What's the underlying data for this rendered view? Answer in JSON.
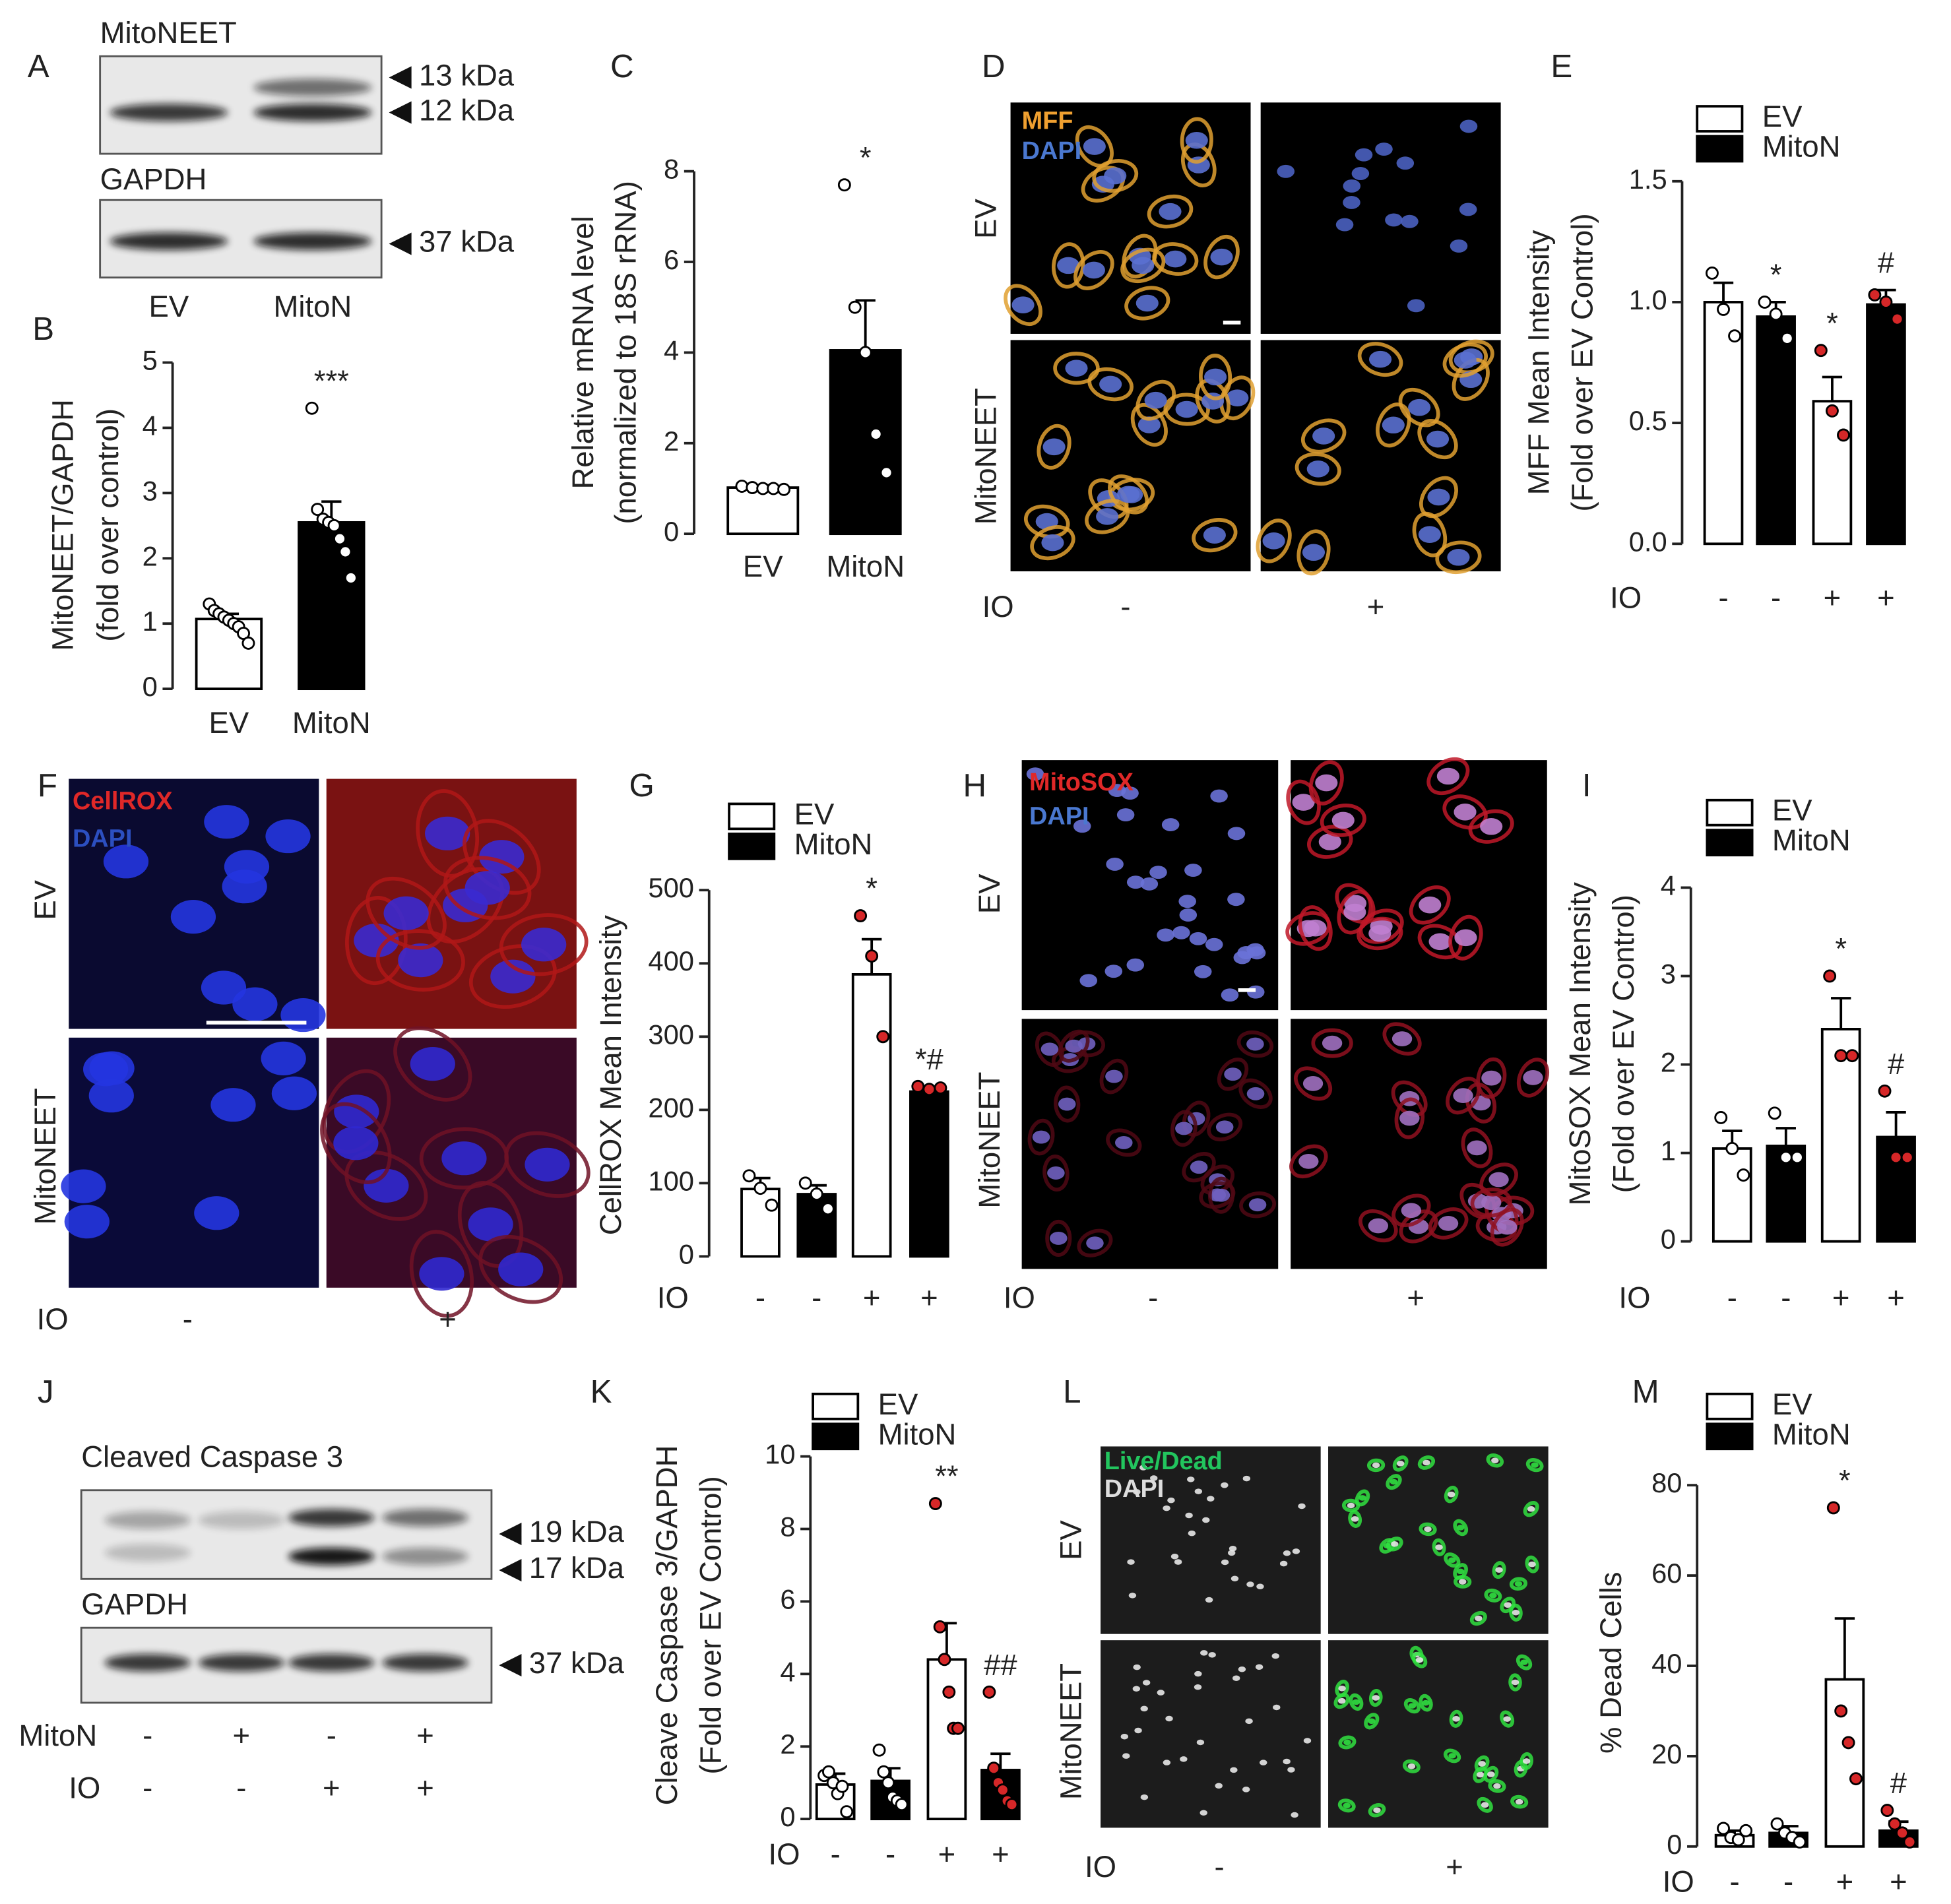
{
  "chart_data": [
    {
      "type": "bar",
      "panel": "B",
      "ylabel": [
        "MitoNEET/GAPDH",
        "(fold over control)"
      ],
      "categories": [
        "EV",
        "MitoN"
      ],
      "colors": [
        "#ffffff",
        "#000000"
      ],
      "values": [
        1.07,
        2.55
      ],
      "errors": [
        0.08,
        0.32
      ],
      "points": [
        [
          1.3,
          1.2,
          1.15,
          1.1,
          1.05,
          1.0,
          0.95,
          0.85,
          0.7
        ],
        [
          4.3,
          2.75,
          2.6,
          2.55,
          2.5,
          2.3,
          2.1,
          1.7
        ]
      ],
      "point_colors": [
        "#ffffff",
        "#ffffff"
      ],
      "annotations": [
        null,
        "***"
      ],
      "ylim": [
        0,
        5
      ],
      "yticks": [
        0,
        1,
        2,
        3,
        4,
        5
      ]
    },
    {
      "type": "bar",
      "panel": "C",
      "ylabel": [
        "Relative mRNA level",
        "(normalized to 18S rRNA)"
      ],
      "categories": [
        "EV",
        "MitoN"
      ],
      "colors": [
        "#ffffff",
        "#000000"
      ],
      "values": [
        1.02,
        4.05
      ],
      "errors": [
        0.05,
        1.1
      ],
      "points": [
        [
          1.05,
          1.02,
          1.0,
          1.0,
          0.98
        ],
        [
          7.7,
          5.0,
          4.0,
          2.2,
          1.35
        ]
      ],
      "point_colors": [
        "#ffffff",
        "#ffffff"
      ],
      "annotations": [
        null,
        "*"
      ],
      "ylim": [
        0,
        8
      ],
      "yticks": [
        0,
        2,
        4,
        6,
        8
      ]
    },
    {
      "type": "bar",
      "panel": "E",
      "ylabel": [
        "MFF Mean Intensity",
        "(Fold over EV Control)"
      ],
      "x_row_label": "IO",
      "categories": [
        "-",
        "-",
        "+",
        "+"
      ],
      "series": [
        {
          "name": "EV",
          "color": "#ffffff",
          "values": [
            1.0,
            null,
            0.59,
            null
          ],
          "errors": [
            0.08,
            null,
            0.1,
            null
          ],
          "points": [
            [
              1.12,
              0.97,
              0.86
            ],
            null,
            [
              0.8,
              0.55,
              0.45
            ],
            null
          ]
        },
        {
          "name": "MitoN",
          "color": "#000000",
          "values": [
            null,
            0.94,
            null,
            0.99
          ],
          "errors": [
            null,
            0.06,
            null,
            0.06
          ],
          "points": [
            null,
            [
              1.0,
              0.95,
              0.85
            ],
            null,
            [
              1.03,
              1.0,
              0.93
            ]
          ]
        }
      ],
      "point_colors": [
        "#ffffff",
        "#ffffff",
        "#d62728",
        "#d62728"
      ],
      "annotations": [
        null,
        "*",
        "*",
        "#"
      ],
      "ylim": [
        0,
        1.5
      ],
      "yticks": [
        {
          "value": 0,
          "label": "0.0"
        },
        0.5,
        {
          "value": 1,
          "label": "1.0"
        },
        1.5
      ]
    },
    {
      "type": "bar",
      "panel": "G",
      "ylabel": [
        "CellROX Mean Intensity"
      ],
      "x_row_label": "IO",
      "categories": [
        "-",
        "-",
        "+",
        "+"
      ],
      "series": [
        {
          "name": "EV",
          "color": "#ffffff",
          "values": [
            92,
            null,
            385,
            null
          ],
          "errors": [
            15,
            null,
            48,
            null
          ],
          "points": [
            [
              110,
              93,
              70
            ],
            null,
            [
              465,
              410,
              300
            ],
            null
          ]
        },
        {
          "name": "MitoN",
          "color": "#000000",
          "values": [
            null,
            85,
            null,
            225
          ],
          "errors": [
            null,
            12,
            null,
            5
          ],
          "points": [
            null,
            [
              100,
              85,
              65
            ],
            null,
            [
              232,
              228,
              230
            ]
          ]
        }
      ],
      "point_colors": [
        "#ffffff",
        "#ffffff",
        "#d62728",
        "#d62728"
      ],
      "annotations": [
        null,
        null,
        "*",
        "*#"
      ],
      "ylim": [
        0,
        500
      ],
      "yticks": [
        0,
        100,
        200,
        300,
        400,
        500
      ]
    },
    {
      "type": "bar",
      "panel": "I",
      "ylabel": [
        "MitoSOX Mean Intensity",
        "(Fold over EV Control)"
      ],
      "x_row_label": "IO",
      "categories": [
        "-",
        "-",
        "+",
        "+"
      ],
      "series": [
        {
          "name": "EV",
          "color": "#ffffff",
          "values": [
            1.05,
            null,
            2.4,
            null
          ],
          "errors": [
            0.2,
            null,
            0.35,
            null
          ],
          "points": [
            [
              1.4,
              1.05,
              0.75
            ],
            null,
            [
              3.0,
              2.1,
              2.1
            ],
            null
          ]
        },
        {
          "name": "MitoN",
          "color": "#000000",
          "values": [
            null,
            1.08,
            null,
            1.18
          ],
          "errors": [
            null,
            0.2,
            null,
            0.28
          ],
          "points": [
            null,
            [
              1.45,
              0.95,
              0.95
            ],
            null,
            [
              1.7,
              0.95,
              0.95
            ]
          ]
        }
      ],
      "point_colors": [
        "#ffffff",
        "#ffffff",
        "#d62728",
        "#d62728"
      ],
      "annotations": [
        null,
        null,
        "*",
        "#"
      ],
      "ylim": [
        0,
        4
      ],
      "yticks": [
        0,
        1,
        2,
        3,
        4
      ]
    },
    {
      "type": "bar",
      "panel": "K",
      "ylabel": [
        "Cleave Caspase 3/GAPDH",
        "(Fold over EV Control)"
      ],
      "x_row_label": "IO",
      "categories": [
        "-",
        "-",
        "+",
        "+"
      ],
      "series": [
        {
          "name": "EV",
          "color": "#ffffff",
          "values": [
            0.95,
            null,
            4.4,
            null
          ],
          "errors": [
            0.3,
            null,
            1.0,
            null
          ],
          "points": [
            [
              1.2,
              1.3,
              1.0,
              0.7,
              0.9,
              0.2
            ],
            null,
            [
              8.7,
              5.3,
              4.4,
              3.5,
              2.5,
              2.5
            ],
            null
          ]
        },
        {
          "name": "MitoN",
          "color": "#000000",
          "values": [
            null,
            1.05,
            null,
            1.35
          ],
          "errors": [
            null,
            0.35,
            null,
            0.45
          ],
          "points": [
            null,
            [
              1.9,
              1.3,
              1.0,
              0.6,
              0.5,
              0.4
            ],
            null,
            [
              3.5,
              1.4,
              1.0,
              0.8,
              0.5,
              0.4
            ]
          ]
        }
      ],
      "point_colors": [
        "#ffffff",
        "#ffffff",
        "#d62728",
        "#d62728"
      ],
      "annotations": [
        null,
        null,
        "**",
        "##"
      ],
      "ylim": [
        0,
        10
      ],
      "yticks": [
        0,
        2,
        4,
        6,
        8,
        10
      ]
    },
    {
      "type": "bar",
      "panel": "M",
      "ylabel": [
        "% Dead Cells"
      ],
      "x_row_label": "IO",
      "categories": [
        "-",
        "-",
        "+",
        "+"
      ],
      "series": [
        {
          "name": "EV",
          "color": "#ffffff",
          "values": [
            2.5,
            null,
            37,
            null
          ],
          "errors": [
            1,
            null,
            13.5,
            null
          ],
          "points": [
            [
              4,
              2,
              1.5,
              3.5
            ],
            null,
            [
              75,
              30,
              23,
              15
            ],
            null
          ]
        },
        {
          "name": "MitoN",
          "color": "#000000",
          "values": [
            null,
            3,
            null,
            3.5
          ],
          "errors": [
            null,
            1.5,
            null,
            2
          ],
          "points": [
            null,
            [
              5,
              3,
              2,
              1
            ],
            null,
            [
              8,
              5,
              3,
              1
            ]
          ]
        }
      ],
      "point_colors": [
        "#ffffff",
        "#ffffff",
        "#d62728",
        "#d62728"
      ],
      "annotations": [
        null,
        null,
        "*",
        "#"
      ],
      "ylim": [
        0,
        80
      ],
      "yticks": [
        0,
        20,
        40,
        60,
        80
      ]
    }
  ],
  "blots": [
    {
      "panel": "A",
      "blots": [
        {
          "label": "MitoNEET",
          "markers": [
            "13 kDa",
            "12 kDa"
          ]
        },
        {
          "label": "GAPDH",
          "markers": [
            "37 kDa"
          ]
        }
      ],
      "lanes": [
        "EV",
        "MitoN"
      ]
    },
    {
      "panel": "J",
      "blots": [
        {
          "label": "Cleaved Caspase 3",
          "markers": [
            "19 kDa",
            "17 kDa"
          ]
        },
        {
          "label": "GAPDH",
          "markers": [
            "37 kDa"
          ]
        }
      ],
      "lane_rows": [
        {
          "label": "MitoN",
          "values": [
            "-",
            "+",
            "-",
            "+"
          ]
        },
        {
          "label": "IO",
          "values": [
            "-",
            "-",
            "+",
            "+"
          ]
        }
      ]
    }
  ],
  "images": [
    {
      "panel": "D",
      "stains": [
        "MFF",
        "DAPI"
      ],
      "rows": [
        "EV",
        "MitoNEET"
      ],
      "x_row_label": "IO",
      "columns": [
        "-",
        "+"
      ]
    },
    {
      "panel": "F",
      "stains": [
        "CellROX",
        "DAPI"
      ],
      "rows": [
        "EV",
        "MitoNEET"
      ],
      "x_row_label": "IO",
      "columns": [
        "-",
        "+"
      ]
    },
    {
      "panel": "H",
      "stains": [
        "MitoSOX",
        "DAPI"
      ],
      "rows": [
        "EV",
        "MitoNEET"
      ],
      "x_row_label": "IO",
      "columns": [
        "-",
        "+"
      ]
    },
    {
      "panel": "L",
      "stains": [
        "Live/Dead",
        "DAPI"
      ],
      "rows": [
        "EV",
        "MitoNEET"
      ],
      "x_row_label": "IO",
      "columns": [
        "-",
        "+"
      ]
    }
  ]
}
